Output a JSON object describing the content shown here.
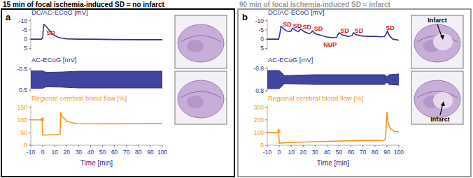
{
  "chart_data": [
    {
      "type": "line",
      "label": "a",
      "title": "15 min of focal ischemia-induced SD = no infarct",
      "color": "#000000",
      "xlabel": "Time [min]",
      "xlim": [
        -10,
        100
      ],
      "xticks": [
        -10,
        0,
        10,
        20,
        30,
        40,
        50,
        60,
        70,
        80,
        90,
        100
      ],
      "traces": [
        {
          "type": "line",
          "ylabel": "DC/AC-ECoG [mV]",
          "ylim": [
            6,
            -11
          ],
          "yticks": [
            -10,
            -5,
            0,
            5
          ],
          "color": "#2e3192",
          "x": [
            -10,
            -1,
            0,
            0.5,
            1,
            2,
            4,
            6,
            8,
            10,
            13,
            16,
            20,
            30,
            40,
            60,
            80,
            100
          ],
          "values": [
            0,
            0,
            -1,
            -6,
            -8,
            -7.5,
            -6,
            -4.5,
            -3,
            -2,
            -1,
            -0.5,
            -0.2,
            0,
            0,
            0.2,
            0.3,
            0.3
          ],
          "annotations": [
            {
              "text": "SD",
              "x": 3,
              "y": -3.6,
              "color": "#d7191c"
            }
          ]
        },
        {
          "type": "band",
          "ylabel": "AC-ECoG [mV]",
          "ylim": [
            0.6,
            -0.6
          ],
          "yticks": [
            -0.5,
            0.5
          ],
          "color": "#2e3192",
          "x": [
            -10,
            0,
            2,
            5,
            15,
            30,
            60,
            100
          ],
          "upper": [
            0.42,
            0.42,
            0.36,
            0.35,
            0.36,
            0.4,
            0.4,
            0.4
          ],
          "lower": [
            -0.42,
            -0.42,
            -0.36,
            -0.35,
            -0.36,
            -0.4,
            -0.4,
            -0.4
          ]
        },
        {
          "type": "line",
          "ylabel": "Regional cerebral blood flow [%]",
          "ylim": [
            0,
            160
          ],
          "yticks": [
            0,
            50,
            100,
            150
          ],
          "color": "#f7941d",
          "x": [
            -10,
            -0.5,
            0,
            14.5,
            15,
            16,
            20,
            25,
            30,
            50,
            70,
            100
          ],
          "values": [
            100,
            100,
            40,
            42,
            130,
            115,
            95,
            88,
            85,
            84,
            85,
            86
          ],
          "annotations": [
            {
              "text": "*",
              "x": -2,
              "y": 112,
              "color": "#f7941d"
            }
          ]
        }
      ]
    },
    {
      "type": "line",
      "label": "b",
      "title": "90 min of focal ischemia-induced SD = infarct",
      "color": "#999999",
      "xlabel": "Time [min]",
      "xlim": [
        -10,
        100
      ],
      "xticks": [
        -10,
        0,
        10,
        20,
        30,
        40,
        50,
        60,
        70,
        80,
        90,
        100
      ],
      "traces": [
        {
          "type": "line",
          "ylabel": "DC/AC-ECoG [mV]",
          "ylim": [
            6,
            -11
          ],
          "yticks": [
            -10,
            -5,
            0,
            5
          ],
          "color": "#2e3192",
          "x": [
            -10,
            -0.5,
            0.5,
            1.5,
            3,
            6,
            9,
            10,
            11,
            13,
            16,
            17,
            18,
            21,
            25,
            26.5,
            28,
            30,
            35,
            40,
            45,
            48,
            49,
            50,
            53,
            58,
            61,
            62,
            64,
            68,
            75,
            80,
            86,
            88,
            89.5,
            90.5,
            92,
            95,
            100
          ],
          "values": [
            0,
            0,
            -3,
            -7,
            -6,
            -4.5,
            -4,
            -4.5,
            -6,
            -5,
            -4,
            -4.8,
            -5.5,
            -4,
            -3,
            -3.5,
            -4.5,
            -3,
            -2,
            -1.2,
            -0.8,
            -1,
            -2.5,
            -3.5,
            -2.2,
            -1.5,
            -2,
            -3.5,
            -2.5,
            -1.8,
            -1.5,
            -1.5,
            -1.3,
            -1.5,
            -3,
            -4.5,
            -2,
            0,
            0.5
          ],
          "annotations": [
            {
              "text": "SD",
              "x": 3,
              "y": -8.2,
              "color": "#d7191c"
            },
            {
              "text": "SD",
              "x": 11.5,
              "y": -7.2,
              "color": "#d7191c"
            },
            {
              "text": "SD",
              "x": 19.5,
              "y": -6.6,
              "color": "#d7191c"
            },
            {
              "text": "SD",
              "x": 29,
              "y": -5.6,
              "color": "#d7191c"
            },
            {
              "text": "NUP",
              "x": 37,
              "y": 2.8,
              "color": "#d7191c"
            },
            {
              "text": "SD",
              "x": 51,
              "y": -4.8,
              "color": "#d7191c"
            },
            {
              "text": "SD",
              "x": 63,
              "y": -4.6,
              "color": "#d7191c"
            },
            {
              "text": "SD",
              "x": 89,
              "y": -6.2,
              "color": "#d7191c"
            }
          ]
        },
        {
          "type": "band",
          "ylabel": "AC-ECoG [mV]",
          "ylim": [
            0.9,
            -0.9
          ],
          "yticks": [
            -0.8,
            0.8
          ],
          "color": "#2e3192",
          "x": [
            -10,
            0,
            2,
            4,
            10,
            30,
            60,
            88,
            90,
            92,
            100
          ],
          "upper": [
            0.65,
            0.65,
            0.5,
            0.3,
            0.3,
            0.35,
            0.35,
            0.35,
            0.2,
            0.35,
            0.4
          ],
          "lower": [
            -0.65,
            -0.65,
            -0.5,
            -0.3,
            -0.3,
            -0.35,
            -0.35,
            -0.35,
            -0.2,
            -0.35,
            -0.4
          ]
        },
        {
          "type": "line",
          "ylabel": "Regional cerebral blood flow [%]",
          "ylim": [
            0,
            320
          ],
          "yticks": [
            0,
            100,
            200,
            300
          ],
          "color": "#f7941d",
          "x": [
            -10,
            -0.5,
            0,
            5,
            20,
            40,
            60,
            80,
            88,
            89,
            90,
            91,
            93,
            96,
            100
          ],
          "values": [
            100,
            100,
            15,
            20,
            25,
            30,
            35,
            38,
            40,
            60,
            260,
            180,
            130,
            110,
            105
          ],
          "annotations": [
            {
              "text": "*",
              "x": -2,
              "y": 128,
              "color": "#f7941d"
            }
          ]
        }
      ],
      "image_labels": [
        "Infarct",
        "Infarct"
      ]
    }
  ]
}
